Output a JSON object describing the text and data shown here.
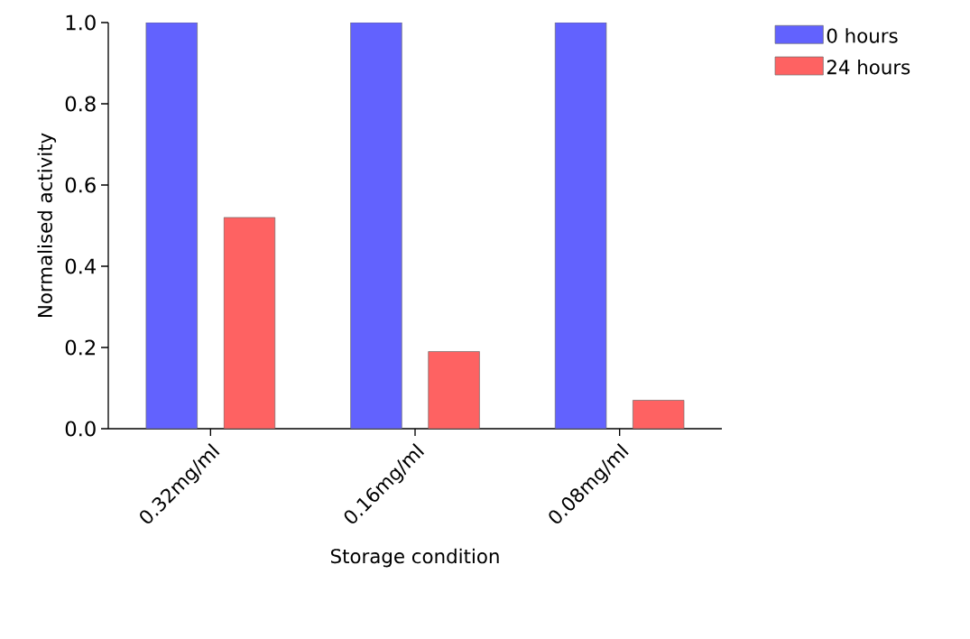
{
  "chart_data": {
    "type": "bar",
    "xlabel": "Storage condition",
    "ylabel": "Normalised activity",
    "categories": [
      "0.32mg/ml",
      "0.16mg/ml",
      "0.08mg/ml"
    ],
    "series": [
      {
        "name": "0 hours",
        "color": "#6262fe",
        "values": [
          1.0,
          1.0,
          1.0
        ]
      },
      {
        "name": "24 hours",
        "color": "#fe6262",
        "values": [
          0.52,
          0.19,
          0.07
        ]
      }
    ],
    "ylim": [
      0,
      1
    ],
    "yticks": [
      {
        "value": 0,
        "label": "0.0"
      },
      {
        "value": 0.2,
        "label": "0.2"
      },
      {
        "value": 0.4,
        "label": "0.4"
      },
      {
        "value": 0.6,
        "label": "0.6"
      },
      {
        "value": 0.8,
        "label": "0.8"
      },
      {
        "value": 1,
        "label": "1.0"
      }
    ],
    "legend": "right",
    "grid": false
  }
}
